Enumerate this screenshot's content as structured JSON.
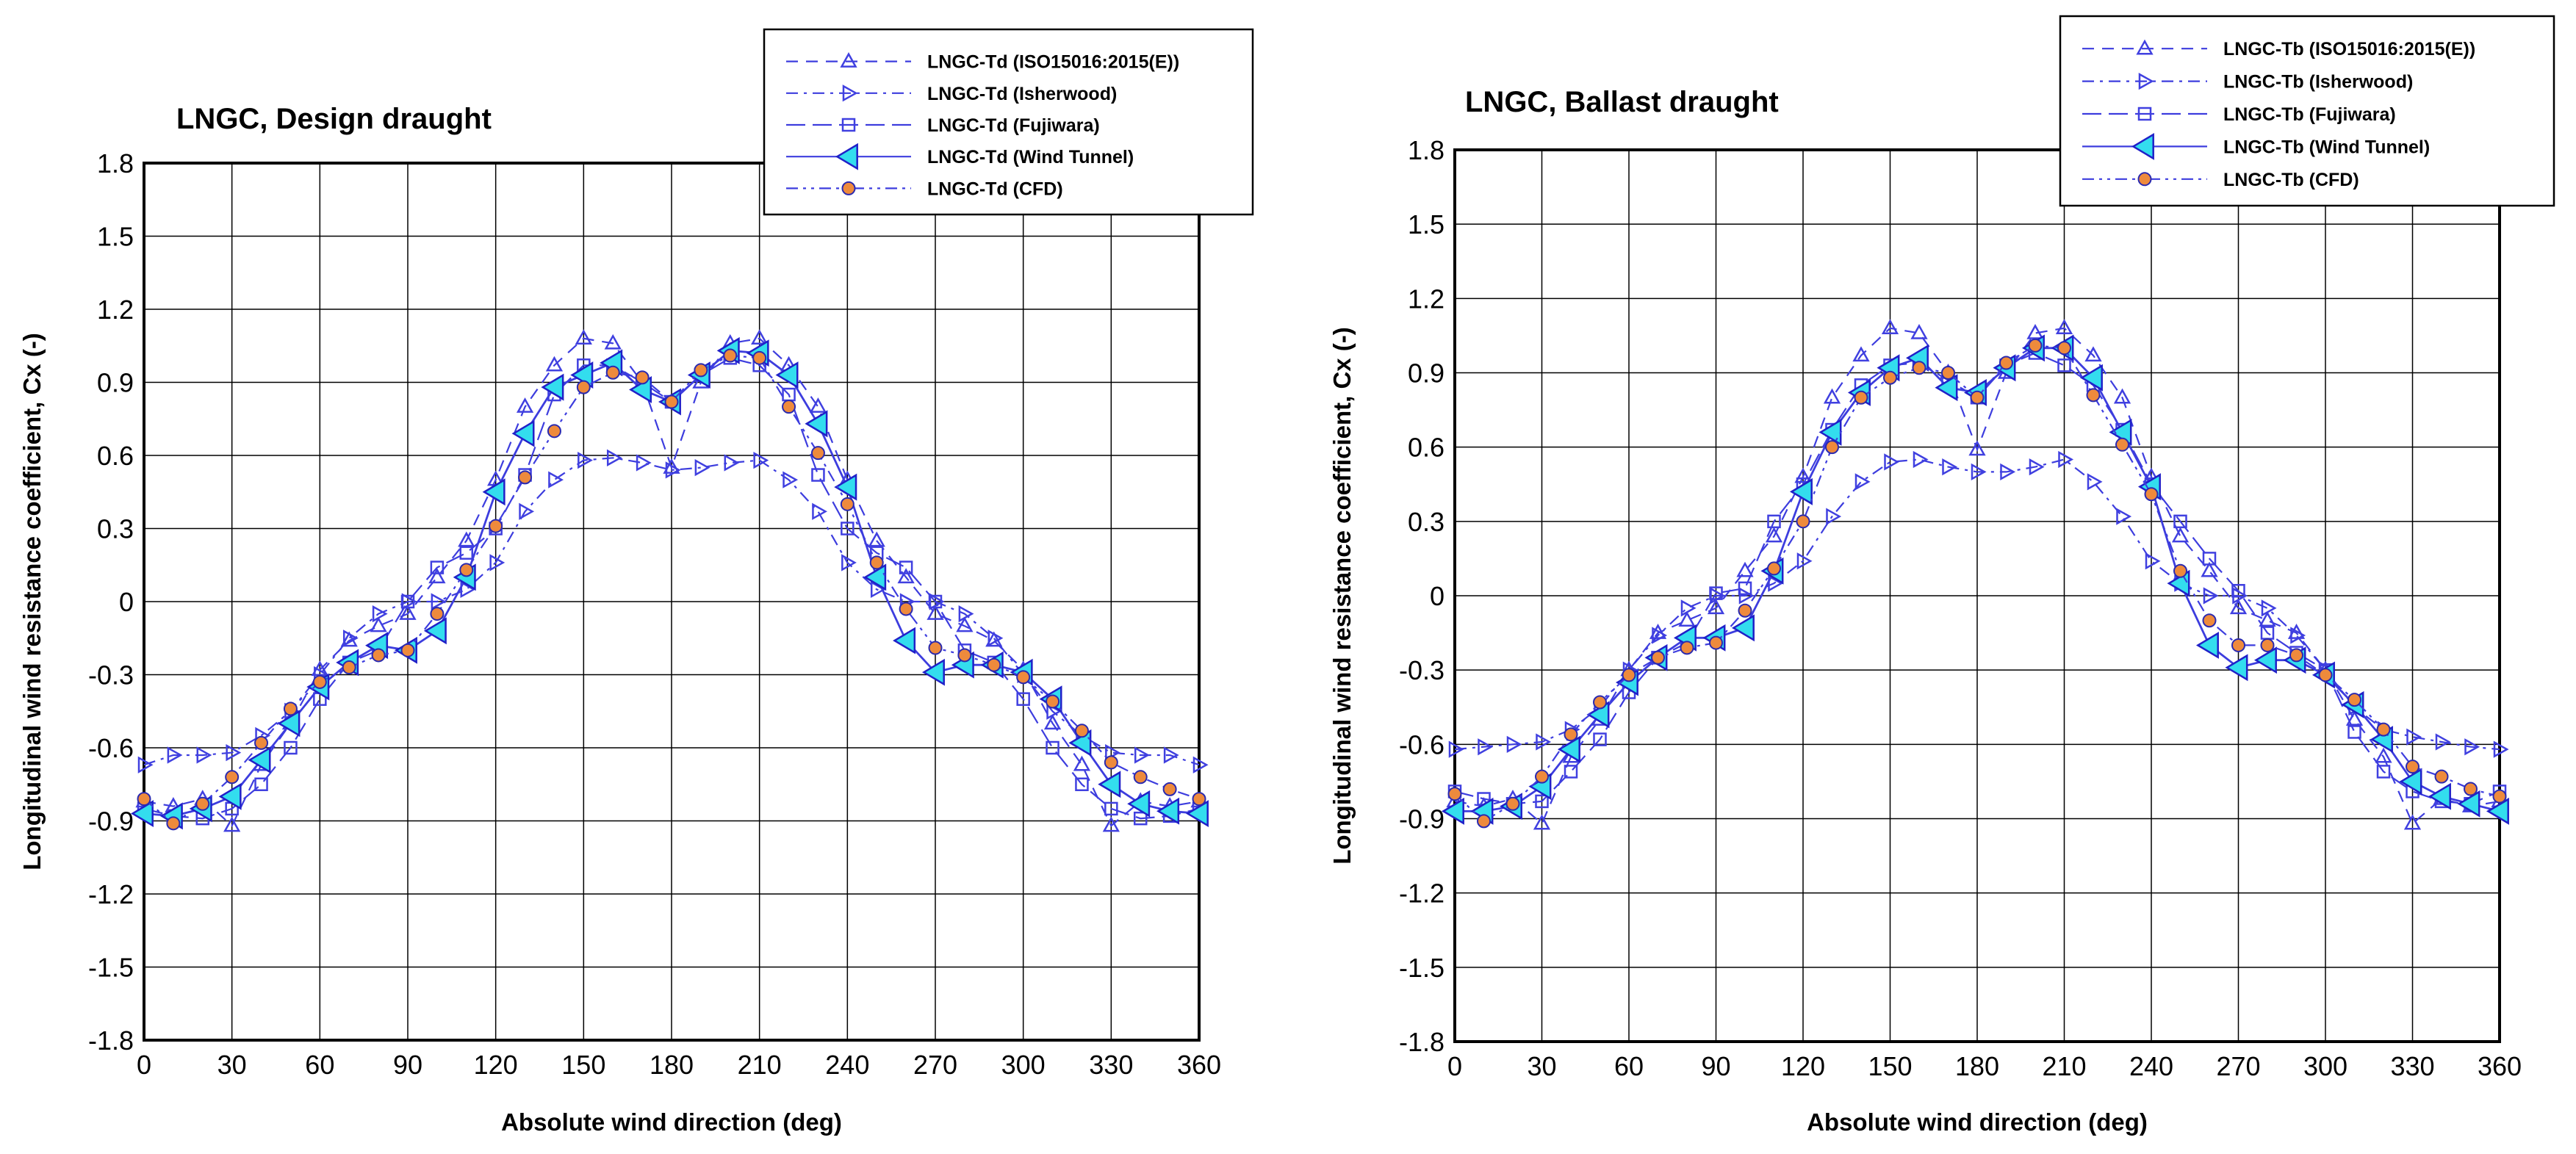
{
  "chart_data": [
    {
      "type": "line",
      "title": "LNGC, Design draught",
      "xlabel": "Absolute wind direction (deg)",
      "ylabel": "Longitudinal wind resistance coefficient, Cx (-)",
      "xlim": [
        0,
        360
      ],
      "ylim": [
        -1.8,
        1.8
      ],
      "grid": true,
      "legend": "top-right",
      "x_ticks": [
        "0",
        "30",
        "60",
        "90",
        "120",
        "150",
        "180",
        "210",
        "240",
        "270",
        "300",
        "330",
        "360"
      ],
      "y_ticks": [
        "-1.8",
        "-1.5",
        "-1.2",
        "-0.9",
        "-0.6",
        "-0.3",
        "0",
        "0.3",
        "0.6",
        "0.9",
        "1.2",
        "1.5",
        "1.8"
      ],
      "series": [
        {
          "name": "LNGC-Td (ISO15016:2015(E))",
          "marker": "triangle-up",
          "dash": "dash",
          "x": [
            0,
            10,
            20,
            30,
            40,
            50,
            60,
            70,
            80,
            90,
            100,
            110,
            120,
            130,
            140,
            150,
            160,
            170,
            180,
            190,
            200,
            210,
            220,
            230,
            240,
            250,
            260,
            270,
            280,
            290,
            300,
            310,
            320,
            330,
            340,
            350,
            360
          ],
          "y": [
            -0.82,
            -0.84,
            -0.81,
            -0.92,
            -0.67,
            -0.5,
            -0.28,
            -0.16,
            -0.1,
            -0.05,
            0.1,
            0.25,
            0.5,
            0.8,
            0.97,
            1.08,
            1.06,
            0.9,
            0.55,
            0.9,
            1.06,
            1.08,
            0.97,
            0.8,
            0.5,
            0.25,
            0.1,
            -0.05,
            -0.1,
            -0.16,
            -0.28,
            -0.5,
            -0.67,
            -0.92,
            -0.82,
            -0.84,
            -0.82
          ]
        },
        {
          "name": "LNGC-Td (Isherwood)",
          "marker": "triangle-right",
          "dash": "dashdot",
          "x": [
            0,
            10,
            20,
            30,
            40,
            50,
            60,
            70,
            80,
            90,
            100,
            110,
            120,
            130,
            140,
            150,
            160,
            170,
            180,
            190,
            200,
            210,
            220,
            230,
            240,
            250,
            260,
            270,
            280,
            290,
            300,
            310,
            320,
            330,
            340,
            350,
            360
          ],
          "y": [
            -0.67,
            -0.63,
            -0.63,
            -0.62,
            -0.55,
            -0.45,
            -0.3,
            -0.15,
            -0.05,
            0.0,
            0.0,
            0.05,
            0.16,
            0.37,
            0.5,
            0.58,
            0.59,
            0.57,
            0.54,
            0.55,
            0.57,
            0.58,
            0.5,
            0.37,
            0.16,
            0.05,
            0.0,
            0.0,
            -0.05,
            -0.15,
            -0.3,
            -0.45,
            -0.55,
            -0.62,
            -0.63,
            -0.63,
            -0.67
          ]
        },
        {
          "name": "LNGC-Td (Fujiwara)",
          "marker": "square",
          "dash": "longdash",
          "x": [
            0,
            10,
            20,
            30,
            40,
            50,
            60,
            70,
            80,
            90,
            100,
            110,
            120,
            130,
            140,
            150,
            160,
            170,
            180,
            190,
            200,
            210,
            220,
            230,
            240,
            250,
            260,
            270,
            280,
            290,
            300,
            310,
            320,
            330,
            340,
            350,
            360
          ],
          "y": [
            -0.85,
            -0.88,
            -0.89,
            -0.85,
            -0.75,
            -0.6,
            -0.4,
            -0.25,
            -0.2,
            0.0,
            0.14,
            0.2,
            0.3,
            0.52,
            0.85,
            0.97,
            0.97,
            0.9,
            0.82,
            0.93,
            1.0,
            0.97,
            0.85,
            0.52,
            0.3,
            0.2,
            0.14,
            0.0,
            -0.2,
            -0.25,
            -0.4,
            -0.6,
            -0.75,
            -0.85,
            -0.89,
            -0.88,
            -0.85
          ]
        },
        {
          "name": "LNGC-Td (Wind Tunnel)",
          "marker": "triangle-left",
          "dash": "solid",
          "x": [
            0,
            10,
            20,
            30,
            40,
            50,
            60,
            70,
            80,
            90,
            100,
            110,
            120,
            130,
            140,
            150,
            160,
            170,
            180,
            190,
            200,
            210,
            220,
            230,
            240,
            250,
            260,
            270,
            280,
            290,
            300,
            310,
            320,
            330,
            340,
            350,
            360
          ],
          "y": [
            -0.87,
            -0.88,
            -0.85,
            -0.8,
            -0.65,
            -0.5,
            -0.35,
            -0.25,
            -0.18,
            -0.2,
            -0.12,
            0.1,
            0.45,
            0.69,
            0.88,
            0.93,
            0.98,
            0.87,
            0.82,
            0.93,
            1.03,
            1.02,
            0.93,
            0.73,
            0.47,
            0.1,
            -0.16,
            -0.29,
            -0.26,
            -0.26,
            -0.29,
            -0.4,
            -0.58,
            -0.75,
            -0.83,
            -0.86,
            -0.87
          ]
        },
        {
          "name": "LNGC-Td (CFD)",
          "marker": "circle",
          "dash": "dashdotdot",
          "x": [
            0,
            10,
            20,
            30,
            40,
            50,
            60,
            70,
            80,
            90,
            100,
            110,
            120,
            130,
            140,
            150,
            160,
            170,
            180,
            190,
            200,
            210,
            220,
            230,
            240,
            250,
            260,
            270,
            280,
            290,
            300,
            310,
            320,
            330,
            340,
            350,
            360
          ],
          "y": [
            -0.81,
            -0.91,
            -0.83,
            -0.72,
            -0.58,
            -0.44,
            -0.33,
            -0.27,
            -0.22,
            -0.2,
            -0.05,
            0.13,
            0.31,
            0.51,
            0.7,
            0.88,
            0.94,
            0.92,
            0.82,
            0.95,
            1.01,
            1.0,
            0.8,
            0.61,
            0.4,
            0.16,
            -0.03,
            -0.19,
            -0.22,
            -0.26,
            -0.31,
            -0.41,
            -0.53,
            -0.66,
            -0.72,
            -0.77,
            -0.81
          ]
        }
      ]
    },
    {
      "type": "line",
      "title": "LNGC, Ballast draught",
      "xlabel": "Absolute wind direction (deg)",
      "ylabel": "Longitudinal wind resistance coefficient, Cx (-)",
      "xlim": [
        0,
        360
      ],
      "ylim": [
        -1.8,
        1.8
      ],
      "grid": true,
      "legend": "top-right",
      "x_ticks": [
        "0",
        "30",
        "60",
        "90",
        "120",
        "150",
        "180",
        "210",
        "240",
        "270",
        "300",
        "330",
        "360"
      ],
      "y_ticks": [
        "-1.8",
        "-1.5",
        "-1.2",
        "-0.9",
        "-0.6",
        "-0.3",
        "0",
        "0.3",
        "0.6",
        "0.9",
        "1.2",
        "1.5",
        "1.8"
      ],
      "series": [
        {
          "name": "LNGC-Tb (ISO15016:2015(E))",
          "marker": "triangle-up",
          "dash": "dash",
          "x": [
            0,
            10,
            20,
            30,
            40,
            50,
            60,
            70,
            80,
            90,
            100,
            110,
            120,
            130,
            140,
            150,
            160,
            170,
            180,
            190,
            200,
            210,
            220,
            230,
            240,
            250,
            260,
            270,
            280,
            290,
            300,
            310,
            320,
            330,
            340,
            350,
            360
          ],
          "y": [
            -0.83,
            -0.85,
            -0.82,
            -0.92,
            -0.65,
            -0.5,
            -0.3,
            -0.15,
            -0.1,
            -0.05,
            0.1,
            0.24,
            0.48,
            0.8,
            0.97,
            1.08,
            1.06,
            0.9,
            0.59,
            0.9,
            1.06,
            1.08,
            0.97,
            0.8,
            0.48,
            0.24,
            0.1,
            -0.05,
            -0.1,
            -0.15,
            -0.3,
            -0.5,
            -0.65,
            -0.92,
            -0.82,
            -0.85,
            -0.83
          ]
        },
        {
          "name": "LNGC-Tb (Isherwood)",
          "marker": "triangle-right",
          "dash": "dashdot",
          "x": [
            0,
            10,
            20,
            30,
            40,
            50,
            60,
            70,
            80,
            90,
            100,
            110,
            120,
            130,
            140,
            150,
            160,
            170,
            180,
            190,
            200,
            210,
            220,
            230,
            240,
            250,
            260,
            270,
            280,
            290,
            300,
            310,
            320,
            330,
            340,
            350,
            360
          ],
          "y": [
            -0.62,
            -0.61,
            -0.6,
            -0.59,
            -0.54,
            -0.45,
            -0.3,
            -0.16,
            -0.05,
            0.0,
            0.0,
            0.05,
            0.14,
            0.32,
            0.46,
            0.54,
            0.55,
            0.52,
            0.5,
            0.5,
            0.52,
            0.55,
            0.46,
            0.32,
            0.14,
            0.05,
            0.0,
            0.0,
            -0.05,
            -0.16,
            -0.3,
            -0.45,
            -0.54,
            -0.57,
            -0.59,
            -0.61,
            -0.62
          ]
        },
        {
          "name": "LNGC-Tb (Fujiwara)",
          "marker": "square",
          "dash": "longdash",
          "x": [
            0,
            10,
            20,
            30,
            40,
            50,
            60,
            70,
            80,
            90,
            100,
            110,
            120,
            130,
            140,
            150,
            160,
            170,
            180,
            190,
            200,
            210,
            220,
            230,
            240,
            250,
            260,
            270,
            280,
            290,
            300,
            310,
            320,
            330,
            340,
            350,
            360
          ],
          "y": [
            -0.79,
            -0.82,
            -0.84,
            -0.83,
            -0.71,
            -0.58,
            -0.39,
            -0.25,
            -0.19,
            0.01,
            0.03,
            0.3,
            0.45,
            0.67,
            0.85,
            0.93,
            0.94,
            0.87,
            0.8,
            0.93,
            0.98,
            0.93,
            0.85,
            0.67,
            0.45,
            0.3,
            0.15,
            0.02,
            -0.15,
            -0.23,
            -0.3,
            -0.55,
            -0.71,
            -0.79,
            -0.83,
            -0.84,
            -0.79
          ]
        },
        {
          "name": "LNGC-Tb (Wind Tunnel)",
          "marker": "triangle-left",
          "dash": "solid",
          "x": [
            0,
            10,
            20,
            30,
            40,
            50,
            60,
            70,
            80,
            90,
            100,
            110,
            120,
            130,
            140,
            150,
            160,
            170,
            180,
            190,
            200,
            210,
            220,
            230,
            240,
            250,
            260,
            270,
            280,
            290,
            300,
            310,
            320,
            330,
            340,
            350,
            360
          ],
          "y": [
            -0.87,
            -0.87,
            -0.85,
            -0.77,
            -0.62,
            -0.48,
            -0.35,
            -0.25,
            -0.17,
            -0.17,
            -0.13,
            0.1,
            0.42,
            0.66,
            0.82,
            0.92,
            0.96,
            0.84,
            0.82,
            0.92,
            1.0,
            1.0,
            0.88,
            0.66,
            0.44,
            0.05,
            -0.2,
            -0.29,
            -0.26,
            -0.26,
            -0.32,
            -0.44,
            -0.58,
            -0.75,
            -0.81,
            -0.84,
            -0.87
          ]
        },
        {
          "name": "LNGC-Tb (CFD)",
          "marker": "circle",
          "dash": "dashdotdot",
          "x": [
            0,
            10,
            20,
            30,
            40,
            50,
            60,
            70,
            80,
            90,
            100,
            110,
            120,
            130,
            140,
            150,
            160,
            170,
            180,
            190,
            200,
            210,
            220,
            230,
            240,
            250,
            260,
            270,
            280,
            290,
            300,
            310,
            320,
            330,
            340,
            350,
            360
          ],
          "y": [
            -0.8,
            -0.91,
            -0.84,
            -0.73,
            -0.56,
            -0.43,
            -0.32,
            -0.25,
            -0.21,
            -0.19,
            -0.06,
            0.11,
            0.3,
            0.6,
            0.8,
            0.88,
            0.92,
            0.9,
            0.8,
            0.94,
            1.01,
            1.0,
            0.81,
            0.61,
            0.41,
            0.1,
            -0.1,
            -0.2,
            -0.2,
            -0.24,
            -0.32,
            -0.42,
            -0.54,
            -0.69,
            -0.73,
            -0.78,
            -0.81
          ]
        }
      ]
    }
  ]
}
